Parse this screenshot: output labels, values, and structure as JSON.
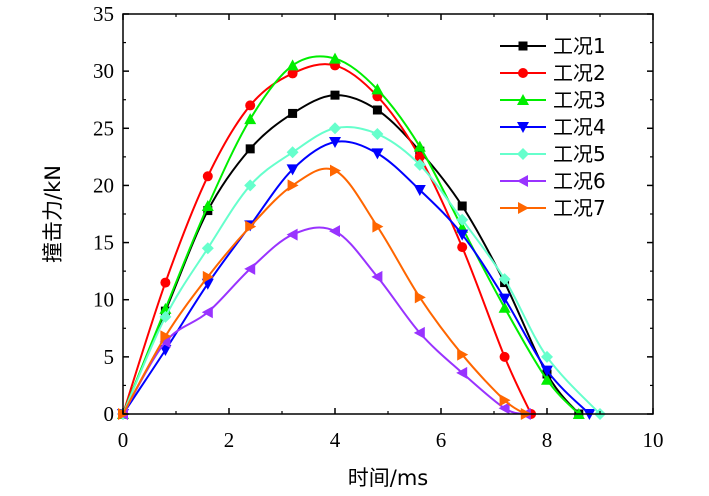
{
  "chart_data": {
    "type": "line",
    "title": "",
    "xlabel": "时间/ms",
    "ylabel": "撞击力/kN",
    "xlim": [
      0,
      10
    ],
    "ylim": [
      0,
      35
    ],
    "xticks": [
      0,
      2,
      4,
      6,
      8,
      10
    ],
    "yticks": [
      0,
      5,
      10,
      15,
      20,
      25,
      30,
      35
    ],
    "grid": false,
    "legend_position": "top-right",
    "series": [
      {
        "name": "工况1",
        "color": "#000000",
        "marker": "square",
        "x": [
          0,
          0.8,
          1.6,
          2.4,
          3.2,
          4.0,
          4.8,
          5.6,
          6.4,
          7.2,
          8.0,
          8.6
        ],
        "y": [
          0,
          9.0,
          17.8,
          23.2,
          26.3,
          27.9,
          26.6,
          23.0,
          18.2,
          11.5,
          3.5,
          0
        ]
      },
      {
        "name": "工况2",
        "color": "#ff0000",
        "marker": "circle",
        "x": [
          0,
          0.8,
          1.6,
          2.4,
          3.2,
          4.0,
          4.8,
          5.6,
          6.4,
          7.2,
          7.7
        ],
        "y": [
          0,
          11.5,
          20.8,
          27.0,
          29.8,
          30.5,
          27.8,
          22.5,
          14.6,
          5.0,
          0
        ]
      },
      {
        "name": "工况3",
        "color": "#00ee00",
        "marker": "triangle-up",
        "x": [
          0,
          0.8,
          1.6,
          2.4,
          3.2,
          4.0,
          4.8,
          5.6,
          6.4,
          7.2,
          8.0,
          8.6
        ],
        "y": [
          0,
          9.2,
          18.2,
          25.8,
          30.5,
          31.1,
          28.4,
          23.4,
          16.3,
          9.3,
          3.0,
          0
        ]
      },
      {
        "name": "工况4",
        "color": "#0000ff",
        "marker": "triangle-down",
        "x": [
          0,
          0.8,
          1.6,
          2.4,
          3.2,
          4.0,
          4.8,
          5.6,
          6.4,
          7.2,
          8.0,
          8.8
        ],
        "y": [
          0,
          5.6,
          11.4,
          16.5,
          21.4,
          23.8,
          22.8,
          19.6,
          15.7,
          10.1,
          3.8,
          0
        ]
      },
      {
        "name": "工况5",
        "color": "#66ffcc",
        "marker": "diamond",
        "x": [
          0,
          0.8,
          1.6,
          2.4,
          3.2,
          4.0,
          4.8,
          5.6,
          6.4,
          7.2,
          8.0,
          9.0
        ],
        "y": [
          0,
          8.5,
          14.5,
          20.0,
          22.9,
          25.0,
          24.5,
          21.8,
          17.0,
          11.8,
          5.0,
          0
        ]
      },
      {
        "name": "工况6",
        "color": "#9933ff",
        "marker": "triangle-left",
        "x": [
          0,
          0.8,
          1.6,
          2.4,
          3.2,
          4.0,
          4.8,
          5.6,
          6.4,
          7.2,
          7.6
        ],
        "y": [
          0,
          6.3,
          8.9,
          12.7,
          15.7,
          16.0,
          12.0,
          7.1,
          3.6,
          0.5,
          0
        ]
      },
      {
        "name": "工况7",
        "color": "#ff6600",
        "marker": "triangle-right",
        "x": [
          0,
          0.8,
          1.6,
          2.4,
          3.2,
          4.0,
          4.8,
          5.6,
          6.4,
          7.2,
          7.6
        ],
        "y": [
          0,
          6.8,
          12.0,
          16.4,
          20.0,
          21.3,
          16.4,
          10.2,
          5.2,
          1.2,
          0
        ]
      }
    ]
  }
}
